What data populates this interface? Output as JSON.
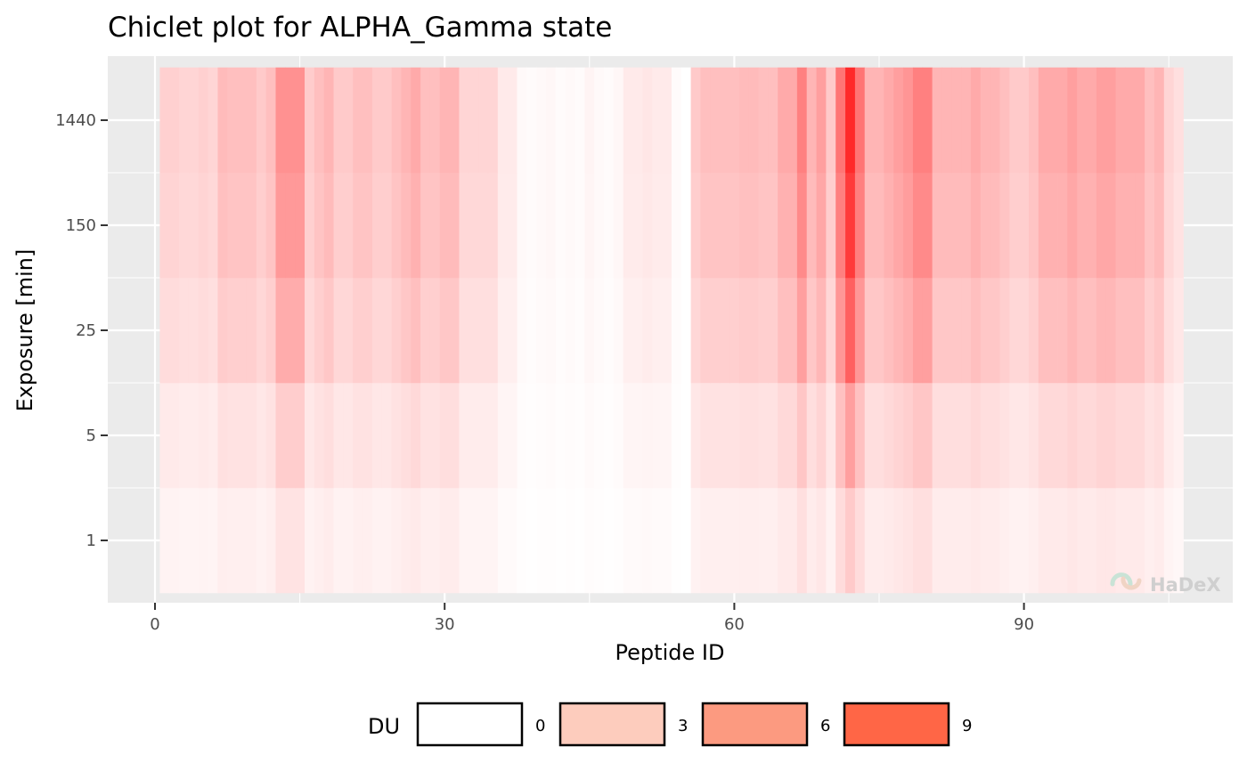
{
  "chart_data": {
    "type": "heatmap",
    "title": "Chiclet plot for ALPHA_Gamma state",
    "xlabel": "Peptide ID",
    "ylabel": "Exposure [min]",
    "xlim": [
      -0.5,
      111
    ],
    "x_ticks": [
      0,
      30,
      60,
      90
    ],
    "y_categories": [
      "1",
      "5",
      "25",
      "150",
      "1440"
    ],
    "n_peptides": 106,
    "legend": {
      "title": "DU",
      "position": "bottom",
      "breaks": [
        0,
        3,
        6,
        9
      ],
      "colors": [
        "#ffffff",
        "#fdccbd",
        "#fc9a80",
        "#ff6646"
      ]
    },
    "color_scale": {
      "low": "#ffffff",
      "high": "#ff0000",
      "max": 12
    },
    "du_profile": [
      2.2,
      2.2,
      2.0,
      2.0,
      2.2,
      2.0,
      3.2,
      3.0,
      3.0,
      3.0,
      2.5,
      3.0,
      5.2,
      5.2,
      5.2,
      2.4,
      3.0,
      3.5,
      2.5,
      2.5,
      3.0,
      3.0,
      2.5,
      2.5,
      3.0,
      3.5,
      4.0,
      3.0,
      3.0,
      3.5,
      3.5,
      2.0,
      2.0,
      2.0,
      2.0,
      1.0,
      1.0,
      0.3,
      0.2,
      0.3,
      0.4,
      0.2,
      0.3,
      0.2,
      0.5,
      0.3,
      0.2,
      0.4,
      1.0,
      1.0,
      1.2,
      1.0,
      1.0,
      0.2,
      0.0,
      2.5,
      3.0,
      3.0,
      3.0,
      3.0,
      3.2,
      3.2,
      3.0,
      3.0,
      4.0,
      4.0,
      6.0,
      3.5,
      4.5,
      2.5,
      6.5,
      10.0,
      6.5,
      3.5,
      3.5,
      4.0,
      4.5,
      5.0,
      6.0,
      6.0,
      3.5,
      3.5,
      3.5,
      3.5,
      4.0,
      3.5,
      3.5,
      3.0,
      2.5,
      2.5,
      3.0,
      4.0,
      4.0,
      4.0,
      4.5,
      4.0,
      4.0,
      4.5,
      4.5,
      4.0,
      4.0,
      4.0,
      3.0,
      3.5,
      2.0,
      1.5
    ],
    "exposure_factors": [
      0.25,
      0.45,
      0.75,
      0.92,
      1.0
    ],
    "watermark": "HaDeX"
  }
}
